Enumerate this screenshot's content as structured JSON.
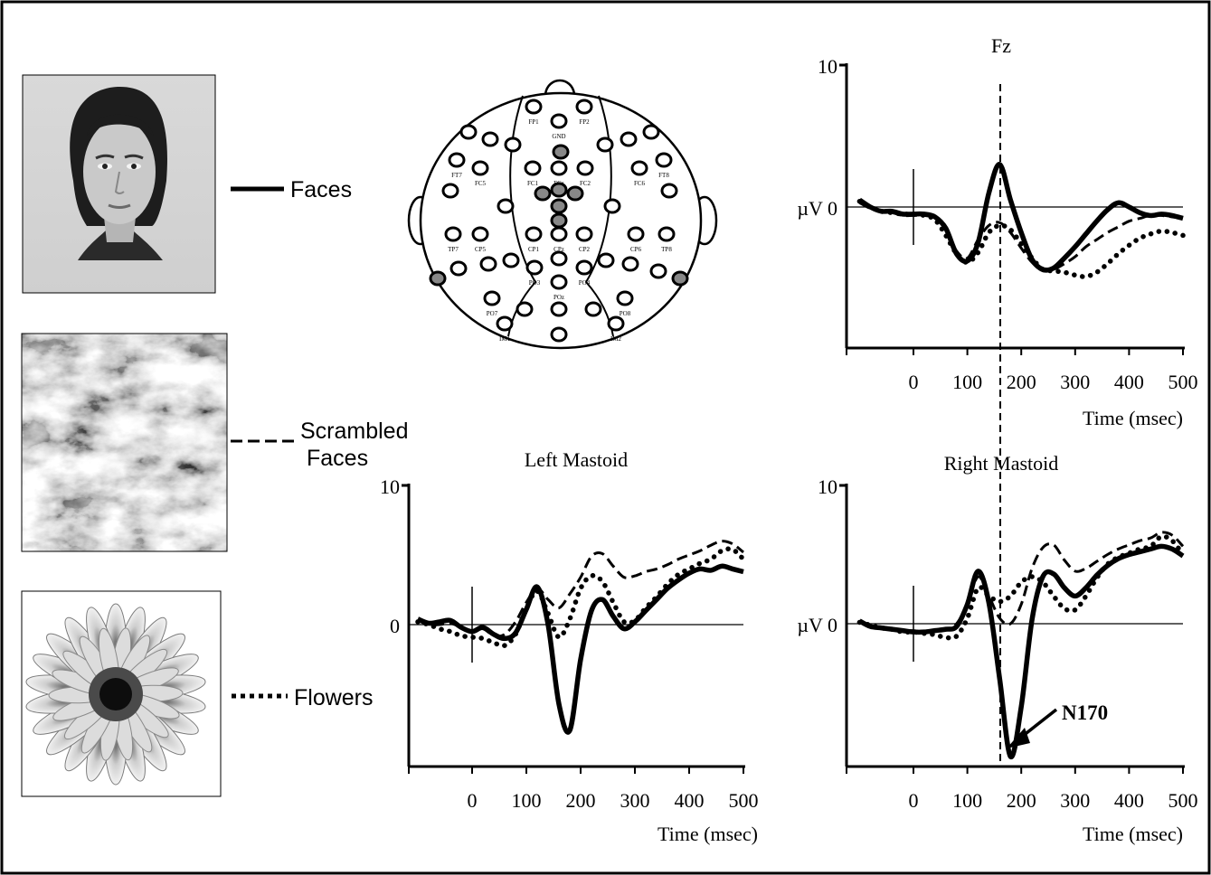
{
  "legend": {
    "faces": "Faces",
    "scrambled_line1": "Scrambled",
    "scrambled_line2": "Faces",
    "flowers": "Flowers"
  },
  "scalp_map": {
    "labels": [
      "FP1",
      "FP2",
      "GND",
      "FT7",
      "FC5",
      "FC1",
      "FCz",
      "FC2",
      "FC6",
      "FT8",
      "TP7",
      "CP5",
      "CP1",
      "CPz",
      "CP2",
      "CP6",
      "TP8",
      "PO3",
      "PO4",
      "POz",
      "PO7",
      "PO8",
      "IM1",
      "IM2"
    ]
  },
  "n170_label": "N170",
  "chart_data": [
    {
      "type": "line",
      "title": "Fz",
      "xlabel": "Time (msec)",
      "ylabel": "µV",
      "xlim": [
        -100,
        500
      ],
      "ylim": [
        -10,
        10
      ],
      "xticks": [
        0,
        100,
        200,
        300,
        400,
        500
      ],
      "yticks": [
        {
          "value": 10,
          "label": "10"
        },
        {
          "value": 0,
          "label": "µV 0"
        }
      ],
      "grid": false,
      "x": [
        -100,
        -80,
        -60,
        -40,
        -20,
        0,
        20,
        40,
        60,
        80,
        100,
        120,
        140,
        160,
        180,
        200,
        220,
        240,
        260,
        280,
        300,
        320,
        340,
        360,
        380,
        400,
        420,
        440,
        460,
        480,
        500
      ],
      "series": [
        {
          "name": "Faces",
          "style": "solid",
          "values": [
            0.5,
            0.0,
            -0.3,
            -0.3,
            -0.5,
            -0.5,
            -0.5,
            -0.7,
            -1.5,
            -3.3,
            -3.8,
            -2.5,
            1.0,
            3.0,
            0.5,
            -1.8,
            -3.7,
            -4.4,
            -4.3,
            -3.6,
            -2.8,
            -1.9,
            -1.0,
            -0.2,
            0.3,
            0.0,
            -0.4,
            -0.6,
            -0.5,
            -0.6,
            -0.8
          ]
        },
        {
          "name": "Scrambled Faces",
          "style": "dashed",
          "values": [
            0.3,
            -0.1,
            -0.3,
            -0.4,
            -0.6,
            -0.6,
            -0.6,
            -0.8,
            -1.6,
            -3.1,
            -3.6,
            -2.3,
            -1.3,
            -1.1,
            -1.8,
            -2.9,
            -3.9,
            -4.5,
            -4.4,
            -4.0,
            -3.5,
            -2.8,
            -2.3,
            -1.8,
            -1.4,
            -1.0,
            -0.8,
            -0.6,
            -0.6,
            -0.7,
            -0.8
          ]
        },
        {
          "name": "Flowers",
          "style": "dotted",
          "values": [
            0.4,
            0.0,
            -0.3,
            -0.4,
            -0.5,
            -0.5,
            -0.6,
            -0.9,
            -2.0,
            -3.3,
            -3.9,
            -3.2,
            -1.8,
            -1.3,
            -1.6,
            -2.6,
            -3.6,
            -4.4,
            -4.5,
            -4.6,
            -4.8,
            -4.9,
            -4.6,
            -4.0,
            -3.3,
            -2.7,
            -2.2,
            -1.9,
            -1.7,
            -1.8,
            -2.0
          ]
        }
      ]
    },
    {
      "type": "line",
      "title": "Left Mastoid",
      "xlabel": "Time (msec)",
      "ylabel": "",
      "xlim": [
        -100,
        500
      ],
      "ylim": [
        -10,
        10
      ],
      "xticks": [
        0,
        100,
        200,
        300,
        400,
        500
      ],
      "yticks": [
        {
          "value": 10,
          "label": "10"
        },
        {
          "value": 0,
          "label": "0"
        }
      ],
      "grid": false,
      "x": [
        -100,
        -80,
        -60,
        -40,
        -20,
        0,
        20,
        40,
        60,
        80,
        100,
        120,
        140,
        160,
        180,
        200,
        220,
        240,
        260,
        280,
        300,
        320,
        340,
        360,
        380,
        400,
        420,
        440,
        460,
        480,
        500
      ],
      "series": [
        {
          "name": "Faces",
          "style": "solid",
          "values": [
            0.4,
            0.1,
            0.2,
            0.3,
            -0.2,
            -0.5,
            -0.2,
            -0.7,
            -1.0,
            -0.6,
            1.1,
            2.7,
            0.0,
            -5.7,
            -7.6,
            -2.5,
            1.0,
            1.8,
            0.6,
            -0.3,
            0.2,
            1.0,
            1.8,
            2.6,
            3.2,
            3.7,
            4.0,
            3.9,
            4.2,
            4.0,
            3.8
          ]
        },
        {
          "name": "Scrambled Faces",
          "style": "dashed",
          "values": [
            0.3,
            0.0,
            0.0,
            0.1,
            -0.2,
            -0.5,
            -0.3,
            -0.8,
            -0.7,
            0.2,
            1.6,
            2.6,
            1.8,
            1.2,
            2.2,
            3.4,
            4.9,
            5.1,
            4.2,
            3.4,
            3.5,
            3.8,
            4.0,
            4.3,
            4.7,
            5.0,
            5.3,
            5.7,
            6.0,
            5.8,
            5.2
          ]
        },
        {
          "name": "Flowers",
          "style": "dotted",
          "values": [
            0.2,
            0.0,
            -0.3,
            -0.5,
            -0.8,
            -0.9,
            -1.0,
            -1.3,
            -1.5,
            -0.7,
            1.2,
            2.4,
            0.8,
            -0.9,
            0.4,
            2.6,
            3.5,
            3.1,
            1.6,
            0.2,
            0.3,
            1.2,
            2.0,
            2.9,
            3.6,
            4.0,
            4.4,
            4.7,
            5.3,
            5.4,
            4.7
          ]
        }
      ]
    },
    {
      "type": "line",
      "title": "Right  Mastoid",
      "xlabel": "Time (msec)",
      "ylabel": "µV",
      "xlim": [
        -100,
        500
      ],
      "ylim": [
        -10,
        10
      ],
      "xticks": [
        0,
        100,
        200,
        300,
        400,
        500
      ],
      "yticks": [
        {
          "value": 10,
          "label": "10"
        },
        {
          "value": 0,
          "label": "µV 0"
        }
      ],
      "grid": false,
      "x": [
        -100,
        -80,
        -60,
        -40,
        -20,
        0,
        20,
        40,
        60,
        80,
        100,
        120,
        140,
        160,
        180,
        200,
        220,
        240,
        260,
        280,
        300,
        320,
        340,
        360,
        380,
        400,
        420,
        440,
        460,
        480,
        500
      ],
      "series": [
        {
          "name": "Faces",
          "style": "solid",
          "values": [
            0.2,
            -0.2,
            -0.3,
            -0.4,
            -0.5,
            -0.6,
            -0.6,
            -0.5,
            -0.4,
            -0.2,
            1.4,
            3.8,
            1.5,
            -4.0,
            -9.6,
            -6.0,
            0.3,
            3.4,
            3.6,
            2.6,
            2.0,
            2.6,
            3.5,
            4.2,
            4.7,
            5.0,
            5.2,
            5.4,
            5.6,
            5.4,
            4.9
          ]
        },
        {
          "name": "Scrambled Faces",
          "style": "dashed",
          "values": [
            0.1,
            -0.2,
            -0.3,
            -0.4,
            -0.5,
            -0.5,
            -0.6,
            -0.5,
            -0.4,
            0.0,
            1.4,
            3.4,
            2.0,
            0.4,
            0.0,
            1.4,
            4.0,
            5.5,
            5.7,
            4.6,
            3.8,
            4.0,
            4.5,
            5.0,
            5.4,
            5.7,
            6.0,
            6.2,
            6.6,
            6.4,
            5.6
          ]
        },
        {
          "name": "Flowers",
          "style": "dotted",
          "values": [
            0.1,
            -0.1,
            -0.3,
            -0.4,
            -0.6,
            -0.6,
            -0.7,
            -0.8,
            -1.0,
            -0.9,
            0.4,
            2.6,
            2.0,
            1.6,
            2.0,
            3.0,
            3.4,
            3.0,
            2.0,
            1.1,
            1.0,
            2.0,
            3.3,
            4.3,
            4.8,
            5.1,
            5.4,
            5.6,
            6.3,
            6.0,
            5.0
          ]
        }
      ]
    }
  ]
}
